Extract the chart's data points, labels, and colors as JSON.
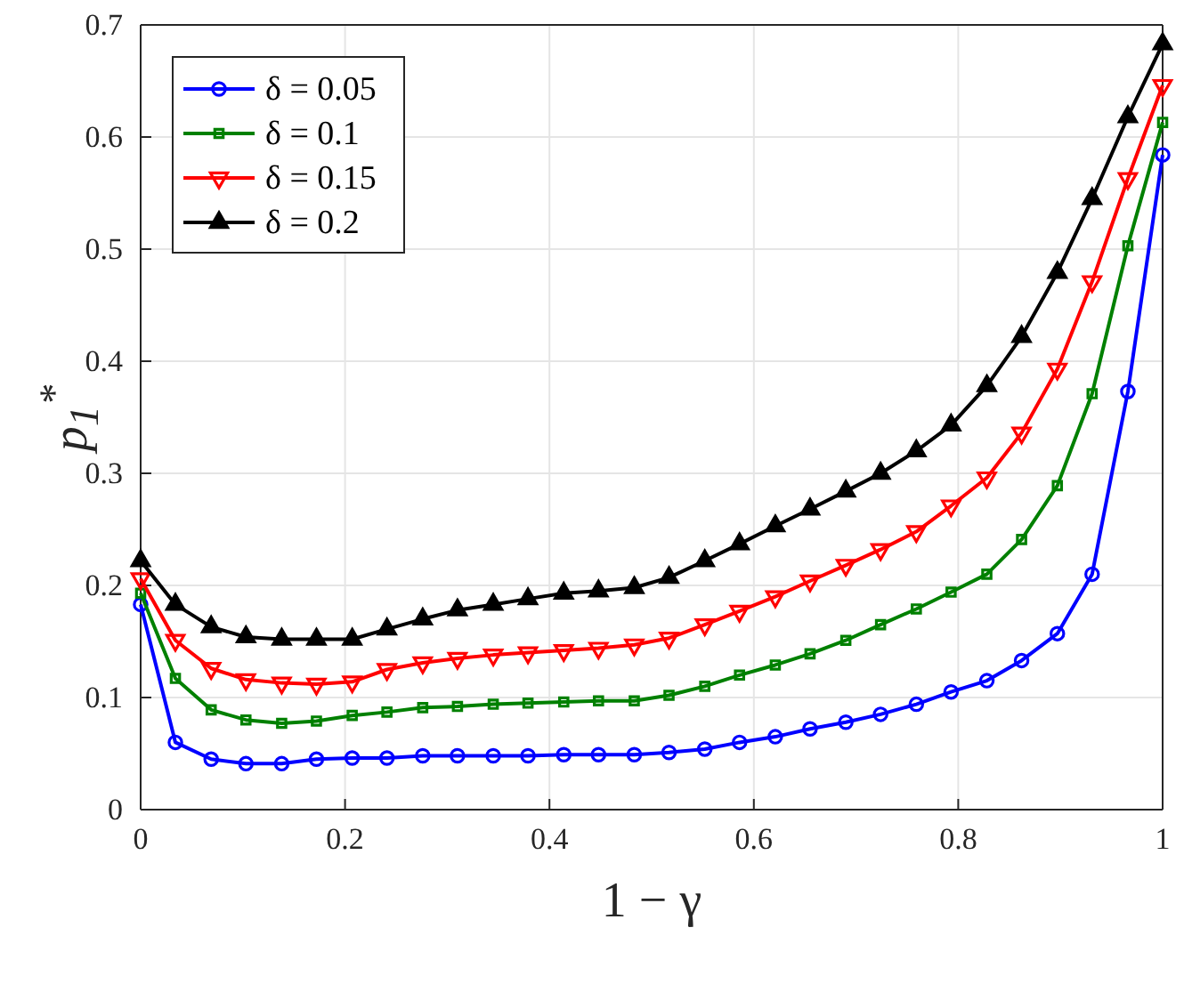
{
  "chart_data": {
    "type": "line",
    "xlabel": "1 − γ",
    "ylabel": "p$_{1}$$^{*}$",
    "x": [
      0,
      0.034,
      0.069,
      0.103,
      0.138,
      0.172,
      0.207,
      0.241,
      0.276,
      0.31,
      0.345,
      0.379,
      0.414,
      0.448,
      0.483,
      0.517,
      0.552,
      0.586,
      0.621,
      0.655,
      0.69,
      0.724,
      0.759,
      0.793,
      0.828,
      0.862,
      0.897,
      0.931,
      0.966,
      1
    ],
    "series": [
      {
        "name": "δ = 0.05",
        "color": "#0000ff",
        "marker": "circle",
        "values": [
          0.183,
          0.06,
          0.045,
          0.041,
          0.041,
          0.045,
          0.046,
          0.046,
          0.048,
          0.048,
          0.048,
          0.048,
          0.049,
          0.049,
          0.049,
          0.051,
          0.054,
          0.06,
          0.065,
          0.072,
          0.078,
          0.085,
          0.094,
          0.105,
          0.115,
          0.133,
          0.157,
          0.21,
          0.373,
          0.584
        ]
      },
      {
        "name": "δ = 0.1",
        "color": "#008000",
        "marker": "square",
        "values": [
          0.193,
          0.117,
          0.089,
          0.08,
          0.077,
          0.079,
          0.084,
          0.087,
          0.091,
          0.092,
          0.094,
          0.095,
          0.096,
          0.097,
          0.097,
          0.102,
          0.11,
          0.12,
          0.129,
          0.139,
          0.151,
          0.165,
          0.179,
          0.194,
          0.21,
          0.241,
          0.289,
          0.371,
          0.503,
          0.613
        ]
      },
      {
        "name": "δ = 0.15",
        "color": "#ff0000",
        "marker": "triangle-down",
        "values": [
          0.206,
          0.151,
          0.126,
          0.116,
          0.113,
          0.112,
          0.114,
          0.125,
          0.131,
          0.135,
          0.138,
          0.14,
          0.142,
          0.144,
          0.147,
          0.153,
          0.165,
          0.177,
          0.19,
          0.204,
          0.218,
          0.232,
          0.248,
          0.271,
          0.296,
          0.336,
          0.393,
          0.471,
          0.563,
          0.646
        ]
      },
      {
        "name": "δ = 0.2",
        "color": "#000000",
        "marker": "triangle",
        "values": [
          0.222,
          0.183,
          0.163,
          0.154,
          0.152,
          0.152,
          0.152,
          0.161,
          0.17,
          0.178,
          0.183,
          0.188,
          0.193,
          0.195,
          0.198,
          0.207,
          0.222,
          0.237,
          0.253,
          0.268,
          0.284,
          0.3,
          0.32,
          0.343,
          0.378,
          0.422,
          0.479,
          0.545,
          0.618,
          0.683
        ]
      }
    ],
    "xlim": [
      0,
      1
    ],
    "ylim": [
      0,
      0.7
    ],
    "xticks": [
      0,
      0.2,
      0.4,
      0.6,
      0.8,
      1
    ],
    "yticks": [
      0,
      0.1,
      0.2,
      0.3,
      0.4,
      0.5,
      0.6,
      0.7
    ],
    "grid": true,
    "legend": "top left",
    "line_style": "solid"
  }
}
